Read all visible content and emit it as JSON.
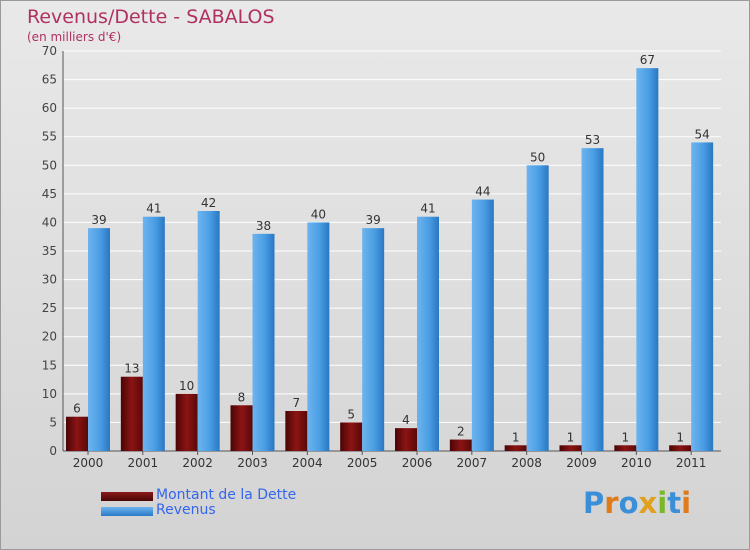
{
  "title": "Revenus/Dette - SABALOS",
  "subtitle": "(en milliers d'€)",
  "colors": {
    "dette": "#6b0a0a",
    "revenus": "#3d8fdc",
    "title": "#b03060",
    "legend_text": "#3366ee"
  },
  "legend": [
    {
      "label": "Montant de la Dette",
      "color": "#6b0a0a"
    },
    {
      "label": "Revenus",
      "color": "#3d8fdc"
    }
  ],
  "logo": {
    "text": "Proxiti"
  },
  "chart_data": {
    "type": "bar",
    "title": "Revenus/Dette - SABALOS",
    "subtitle": "(en milliers d'€)",
    "categories": [
      "2000",
      "2001",
      "2002",
      "2003",
      "2004",
      "2005",
      "2006",
      "2007",
      "2008",
      "2009",
      "2010",
      "2011"
    ],
    "series": [
      {
        "name": "Montant de la Dette",
        "values": [
          6,
          13,
          10,
          8,
          7,
          5,
          4,
          2,
          1,
          1,
          1,
          1
        ]
      },
      {
        "name": "Revenus",
        "values": [
          39,
          41,
          42,
          38,
          40,
          39,
          41,
          44,
          50,
          53,
          67,
          54
        ]
      }
    ],
    "ylim": [
      0,
      70
    ],
    "yticks": [
      0,
      5,
      10,
      15,
      20,
      25,
      30,
      35,
      40,
      45,
      50,
      55,
      60,
      65,
      70
    ],
    "grid": true,
    "legend_position": "bottom-left"
  }
}
